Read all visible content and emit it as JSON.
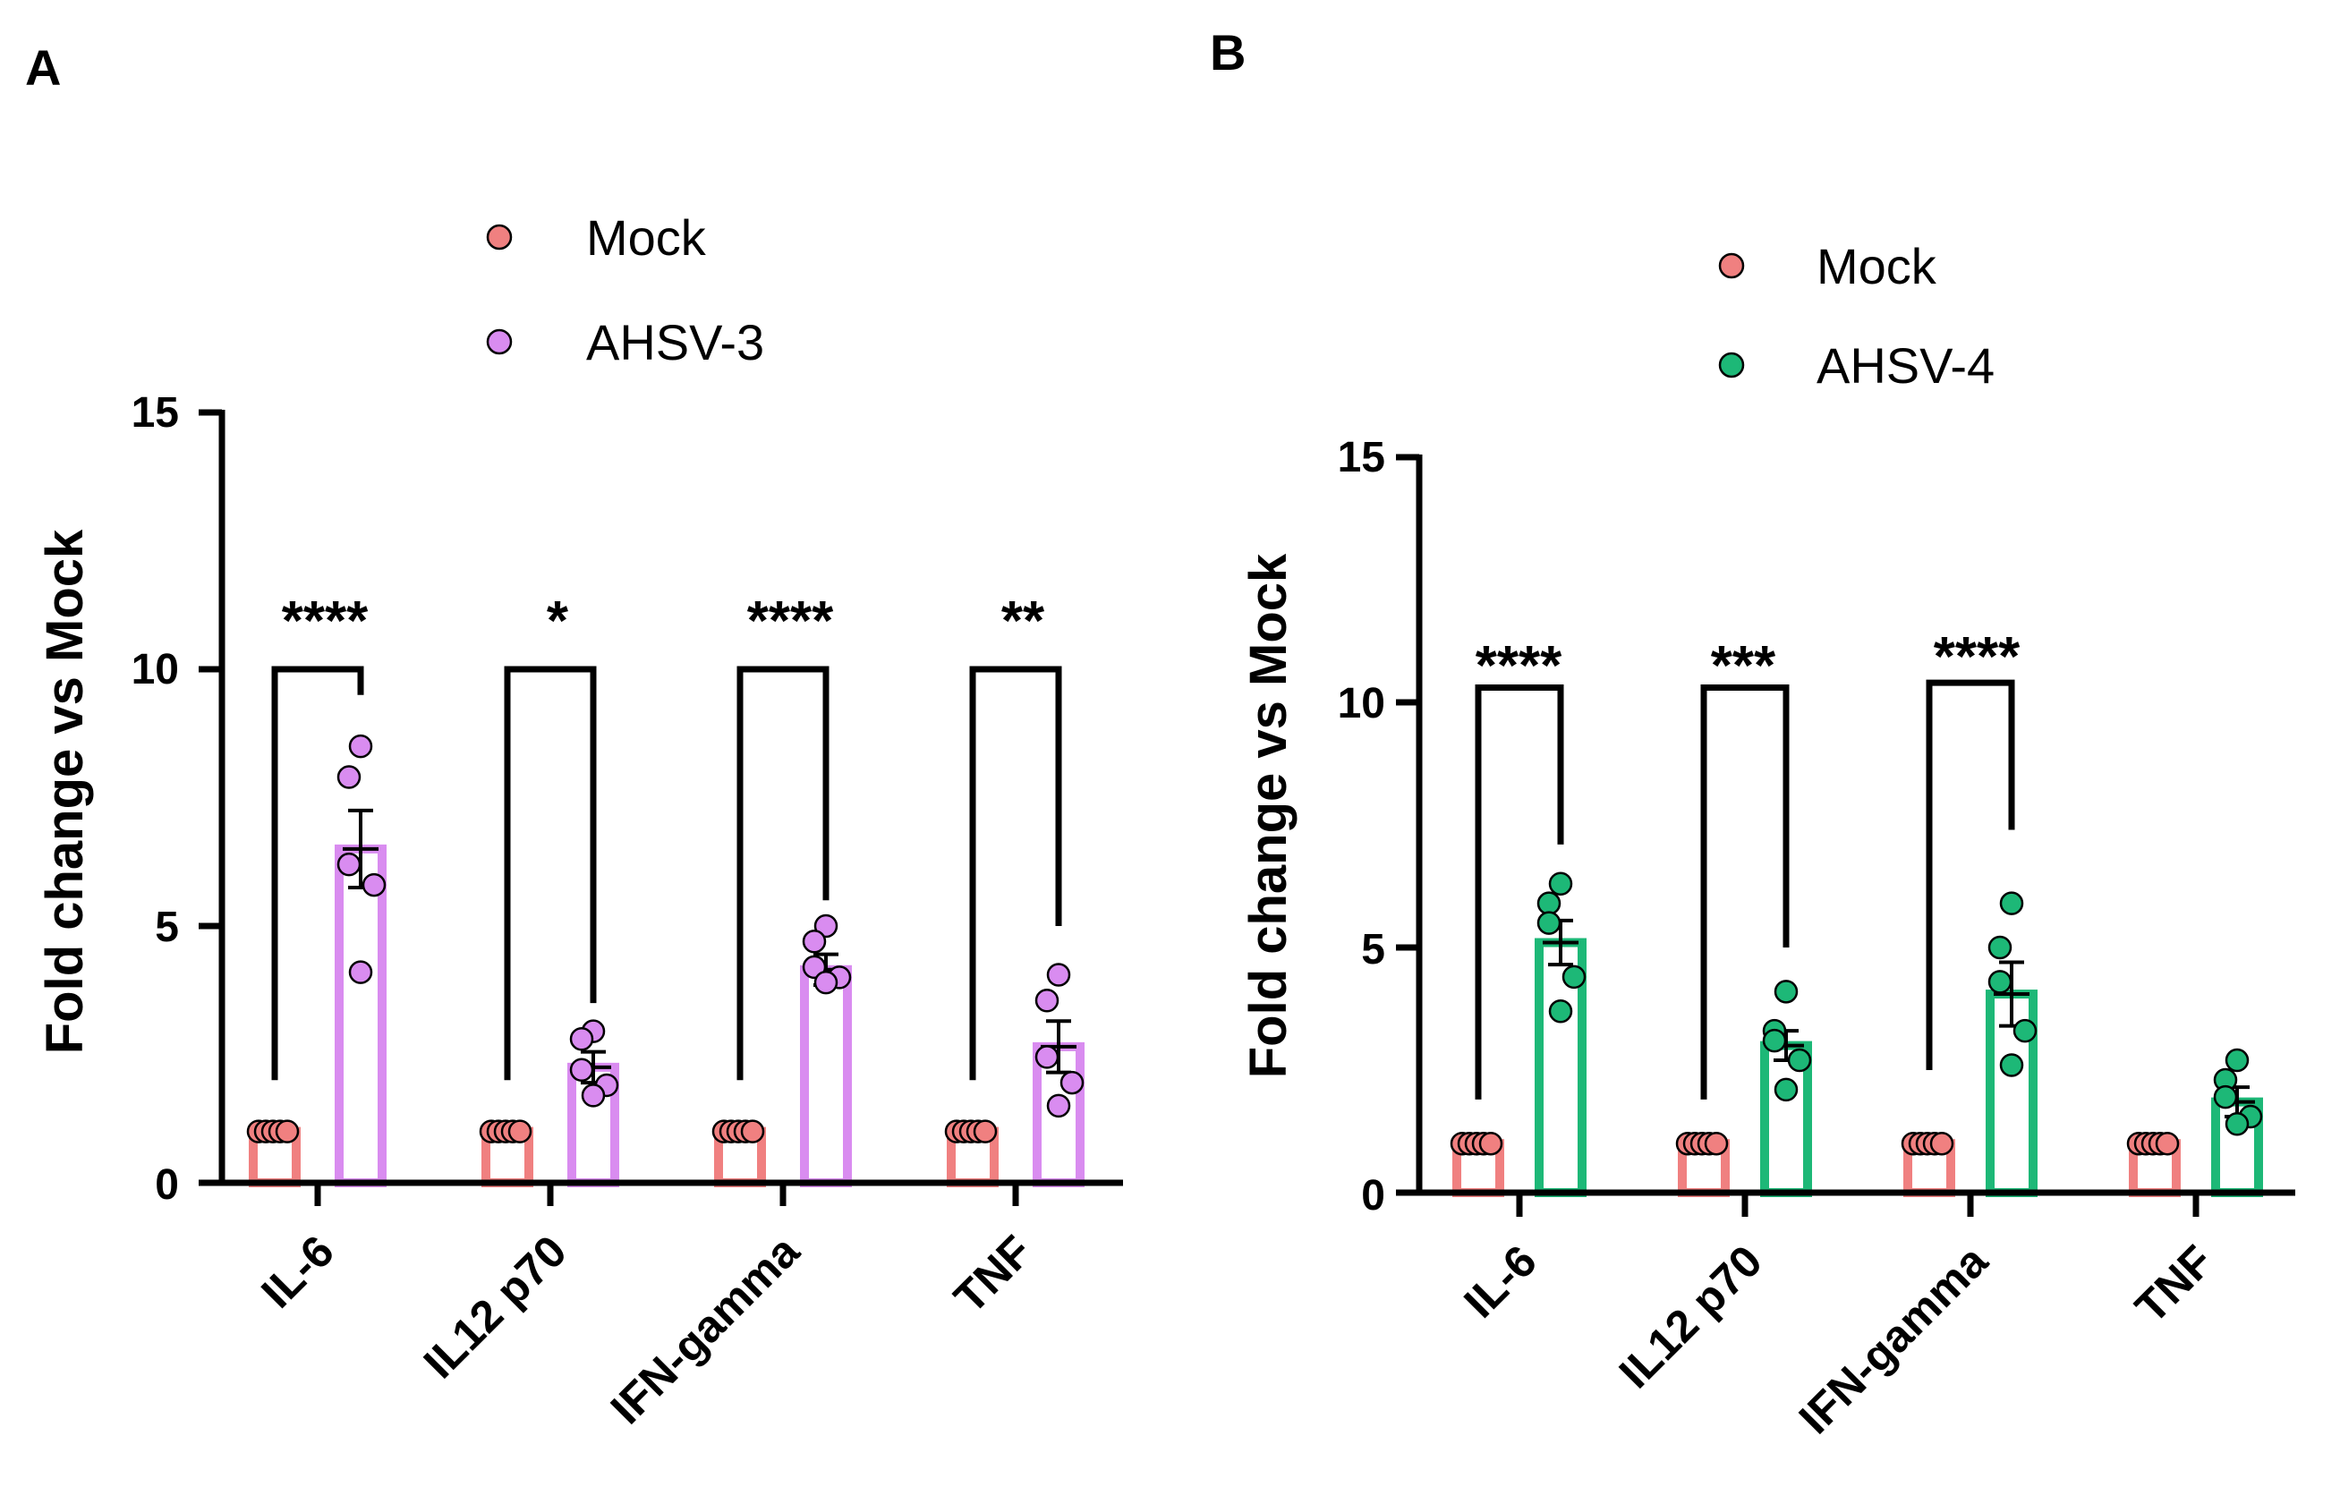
{
  "panels": [
    {
      "label": "A",
      "legend": [
        {
          "label": "Mock",
          "color": "#F08080"
        },
        {
          "label": "AHSV-3",
          "color": "#D98CF0"
        }
      ]
    },
    {
      "label": "B",
      "legend": [
        {
          "label": "Mock",
          "color": "#F08080"
        },
        {
          "label": "AHSV-4",
          "color": "#1DB877"
        }
      ]
    }
  ],
  "chart_data": [
    {
      "type": "bar",
      "panel": "A",
      "ylabel": "Fold change vs Mock",
      "xlabel": "",
      "ylim": [
        0,
        15
      ],
      "yticks": [
        "0",
        "5",
        "10",
        "15"
      ],
      "categories": [
        "IL-6",
        "IL12 p70",
        "IFN-gamma",
        "TNF"
      ],
      "series": [
        {
          "name": "Mock",
          "color": "#F08080",
          "values": [
            1,
            1,
            1,
            1
          ],
          "sem": [
            0,
            0,
            0,
            0
          ],
          "points": [
            [
              1,
              1,
              1,
              1,
              1
            ],
            [
              1,
              1,
              1,
              1,
              1
            ],
            [
              1,
              1,
              1,
              1,
              1
            ],
            [
              1,
              1,
              1,
              1,
              1
            ]
          ]
        },
        {
          "name": "AHSV-3",
          "color": "#D98CF0",
          "values": [
            6.5,
            2.25,
            4.15,
            2.65
          ],
          "sem": [
            0.75,
            0.3,
            0.3,
            0.5
          ],
          "points": [
            [
              8.5,
              7.9,
              6.2,
              5.8,
              4.1
            ],
            [
              2.95,
              2.8,
              2.2,
              1.9,
              1.7
            ],
            [
              5.0,
              4.7,
              4.2,
              4.0,
              3.9
            ],
            [
              4.05,
              3.55,
              2.45,
              1.95,
              1.5
            ]
          ]
        }
      ],
      "significance": [
        "****",
        "*",
        "****",
        "**"
      ],
      "brackets": [
        {
          "category": 0,
          "top": 10.0,
          "left_bottom": 2.0,
          "right_bottom": 9.5
        },
        {
          "category": 1,
          "top": 10.0,
          "left_bottom": 2.0,
          "right_bottom": 3.5
        },
        {
          "category": 2,
          "top": 10.0,
          "left_bottom": 2.0,
          "right_bottom": 5.5
        },
        {
          "category": 3,
          "top": 10.0,
          "left_bottom": 2.0,
          "right_bottom": 5.0
        }
      ]
    },
    {
      "type": "bar",
      "panel": "B",
      "ylabel": "Fold change vs Mock",
      "xlabel": "",
      "ylim": [
        0,
        15
      ],
      "yticks": [
        "0",
        "5",
        "10",
        "15"
      ],
      "categories": [
        "IL-6",
        "IL12 p70",
        "IFN-gamma",
        "TNF"
      ],
      "series": [
        {
          "name": "Mock",
          "color": "#F08080",
          "values": [
            1,
            1,
            1,
            1
          ],
          "sem": [
            0,
            0,
            0,
            0
          ],
          "points": [
            [
              1,
              1,
              1,
              1,
              1
            ],
            [
              1,
              1,
              1,
              1,
              1
            ],
            [
              1,
              1,
              1,
              1,
              1
            ],
            [
              1,
              1,
              1,
              1,
              1
            ]
          ]
        },
        {
          "name": "AHSV-4",
          "color": "#1DB877",
          "values": [
            5.1,
            3.0,
            4.05,
            1.85
          ],
          "sem": [
            0.45,
            0.3,
            0.65,
            0.3
          ],
          "points": [
            [
              6.3,
              5.9,
              5.5,
              4.4,
              3.7
            ],
            [
              4.1,
              3.3,
              3.1,
              2.7,
              2.1
            ],
            [
              5.9,
              5.0,
              4.3,
              3.3,
              2.6
            ],
            [
              2.7,
              2.3,
              1.95,
              1.55,
              1.4
            ]
          ]
        }
      ],
      "significance": [
        "****",
        "***",
        "****",
        ""
      ],
      "brackets": [
        {
          "category": 0,
          "top": 10.3,
          "left_bottom": 1.9,
          "right_bottom": 7.1
        },
        {
          "category": 1,
          "top": 10.3,
          "left_bottom": 1.9,
          "right_bottom": 5.0
        },
        {
          "category": 2,
          "top": 10.4,
          "left_bottom": 2.5,
          "right_bottom": 7.4
        }
      ]
    }
  ]
}
